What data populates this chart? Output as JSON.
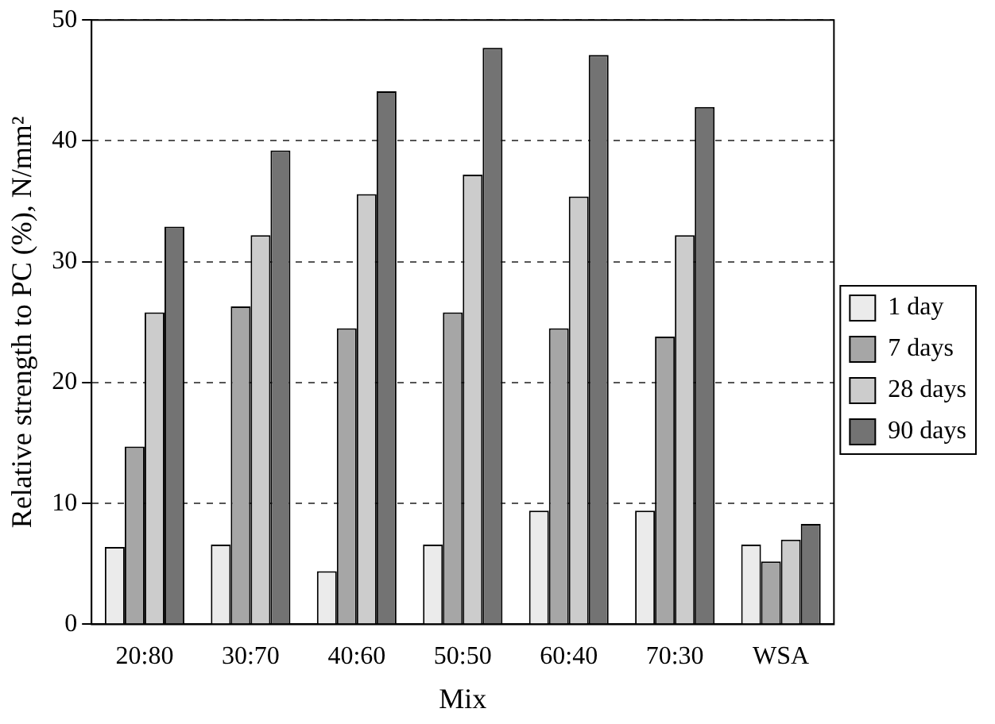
{
  "chart_data": {
    "type": "bar",
    "xlabel": "Mix",
    "ylabel": "Relative strength to PC (%), N/mm²",
    "categories": [
      "20:80",
      "30:70",
      "40:60",
      "50:50",
      "60:40",
      "70:30",
      "WSA"
    ],
    "series": [
      {
        "name": "1 day",
        "color": "#ebebeb",
        "values": [
          6.4,
          6.6,
          4.4,
          6.6,
          9.4,
          9.4,
          6.6
        ]
      },
      {
        "name": "7 days",
        "color": "#a6a6a6",
        "values": [
          14.7,
          26.3,
          24.5,
          25.8,
          24.5,
          23.8,
          5.2
        ]
      },
      {
        "name": "28 days",
        "color": "#cccccc",
        "values": [
          25.8,
          32.2,
          35.6,
          37.2,
          35.4,
          32.2,
          7.0
        ]
      },
      {
        "name": "90 days",
        "color": "#737373",
        "values": [
          32.9,
          39.2,
          44.1,
          47.7,
          47.1,
          42.8,
          8.3
        ]
      }
    ],
    "ylim": [
      0,
      50
    ],
    "yticks": [
      0,
      10,
      20,
      30,
      40,
      50
    ],
    "grid": "y",
    "legend": "right"
  }
}
